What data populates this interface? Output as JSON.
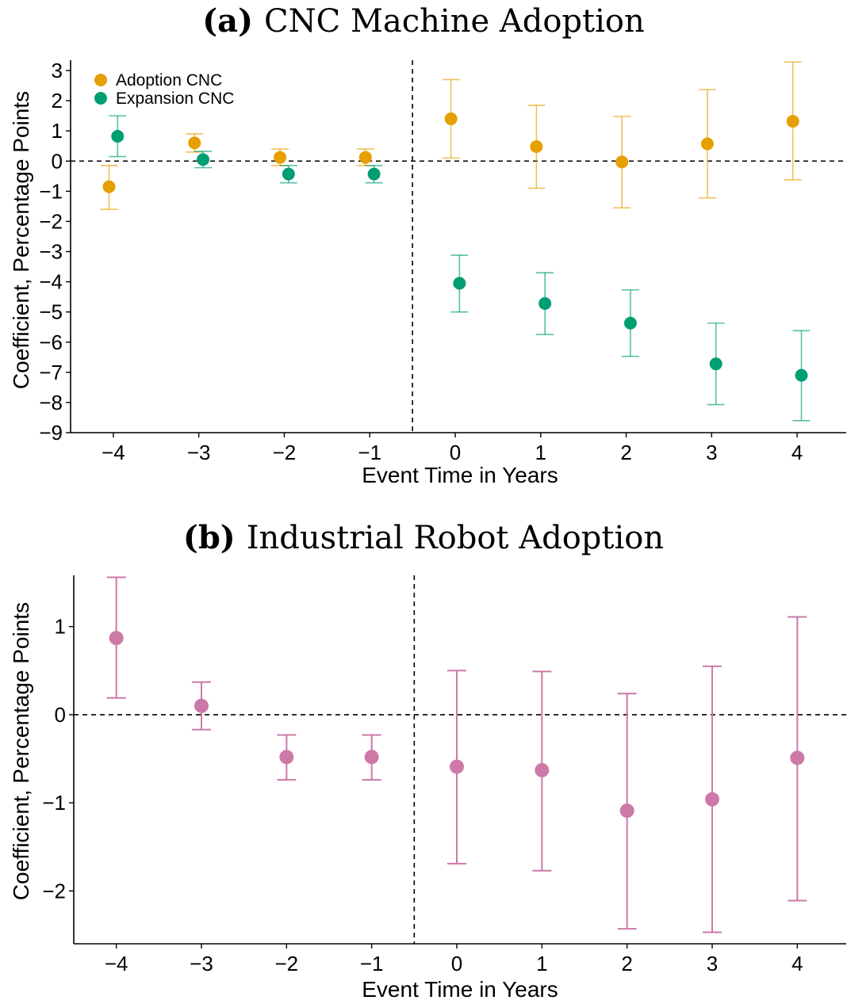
{
  "chart_data": [
    {
      "type": "scatter",
      "panel_label": "(a)",
      "title": "CNC Machine Adoption",
      "xlabel": "Event Time in Years",
      "ylabel": "Coefficient, Percentage Points",
      "xlim": [
        -4.5,
        4.5
      ],
      "ylim": [
        -9,
        3
      ],
      "x_ticks": [
        -4,
        -3,
        -2,
        -1,
        0,
        1,
        2,
        3,
        4
      ],
      "x_tick_labels": [
        "−4",
        "−3",
        "−2",
        "−1",
        "0",
        "1",
        "2",
        "3",
        "4"
      ],
      "y_ticks": [
        3,
        2,
        1,
        0,
        -1,
        -2,
        -3,
        -4,
        -5,
        -6,
        -7,
        -8,
        -9
      ],
      "y_tick_labels": [
        "3",
        "2",
        "1",
        "0",
        "−1",
        "−2",
        "−3",
        "−4",
        "−5",
        "−6",
        "−7",
        "−8",
        "−9"
      ],
      "reference_vline_x": -0.5,
      "reference_hline_y": 0,
      "legend_position": "top-left",
      "series": [
        {
          "name": "Adoption CNC",
          "color": "#E69F00",
          "offset": -0.05,
          "points": [
            {
              "x": -4,
              "y": -0.85,
              "lo": -1.6,
              "hi": -0.15
            },
            {
              "x": -3,
              "y": 0.6,
              "lo": 0.3,
              "hi": 0.9
            },
            {
              "x": -2,
              "y": 0.12,
              "lo": -0.15,
              "hi": 0.4
            },
            {
              "x": -1,
              "y": 0.12,
              "lo": -0.15,
              "hi": 0.4
            },
            {
              "x": 0,
              "y": 1.4,
              "lo": 0.1,
              "hi": 2.7
            },
            {
              "x": 1,
              "y": 0.48,
              "lo": -0.9,
              "hi": 1.85
            },
            {
              "x": 2,
              "y": -0.03,
              "lo": -1.55,
              "hi": 1.48
            },
            {
              "x": 3,
              "y": 0.57,
              "lo": -1.22,
              "hi": 2.37
            },
            {
              "x": 4,
              "y": 1.32,
              "lo": -0.62,
              "hi": 3.28
            }
          ]
        },
        {
          "name": "Expansion CNC",
          "color": "#009E73",
          "offset": 0.05,
          "points": [
            {
              "x": -4,
              "y": 0.82,
              "lo": 0.15,
              "hi": 1.5
            },
            {
              "x": -3,
              "y": 0.05,
              "lo": -0.22,
              "hi": 0.32
            },
            {
              "x": -2,
              "y": -0.43,
              "lo": -0.72,
              "hi": -0.15
            },
            {
              "x": -1,
              "y": -0.43,
              "lo": -0.72,
              "hi": -0.15
            },
            {
              "x": 0,
              "y": -4.05,
              "lo": -5.0,
              "hi": -3.12
            },
            {
              "x": 1,
              "y": -4.72,
              "lo": -5.75,
              "hi": -3.7
            },
            {
              "x": 2,
              "y": -5.37,
              "lo": -6.47,
              "hi": -4.27
            },
            {
              "x": 3,
              "y": -6.72,
              "lo": -8.07,
              "hi": -5.37
            },
            {
              "x": 4,
              "y": -7.1,
              "lo": -8.6,
              "hi": -5.62
            }
          ]
        }
      ]
    },
    {
      "type": "scatter",
      "panel_label": "(b)",
      "title": "Industrial Robot Adoption",
      "xlabel": "Event Time in Years",
      "ylabel": "Coefficient, Percentage Points",
      "xlim": [
        -4.5,
        4.5
      ],
      "ylim": [
        -2.6,
        1.6
      ],
      "x_ticks": [
        -4,
        -3,
        -2,
        -1,
        0,
        1,
        2,
        3,
        4
      ],
      "x_tick_labels": [
        "−4",
        "−3",
        "−2",
        "−1",
        "0",
        "1",
        "2",
        "3",
        "4"
      ],
      "y_ticks": [
        1,
        0,
        -1,
        -2
      ],
      "y_tick_labels": [
        "1",
        "0",
        "−1",
        "−2"
      ],
      "reference_vline_x": -0.5,
      "reference_hline_y": 0,
      "series": [
        {
          "color": "#CC79A7",
          "offset": 0,
          "points": [
            {
              "x": -4,
              "y": 0.87,
              "lo": 0.19,
              "hi": 1.56
            },
            {
              "x": -3,
              "y": 0.1,
              "lo": -0.17,
              "hi": 0.37
            },
            {
              "x": -2,
              "y": -0.48,
              "lo": -0.74,
              "hi": -0.23
            },
            {
              "x": -1,
              "y": -0.48,
              "lo": -0.74,
              "hi": -0.23
            },
            {
              "x": 0,
              "y": -0.59,
              "lo": -1.69,
              "hi": 0.5
            },
            {
              "x": 1,
              "y": -0.63,
              "lo": -1.77,
              "hi": 0.49
            },
            {
              "x": 2,
              "y": -1.09,
              "lo": -2.43,
              "hi": 0.24
            },
            {
              "x": 3,
              "y": -0.96,
              "lo": -2.47,
              "hi": 0.55
            },
            {
              "x": 4,
              "y": -0.49,
              "lo": -2.11,
              "hi": 1.11
            }
          ]
        }
      ]
    }
  ]
}
